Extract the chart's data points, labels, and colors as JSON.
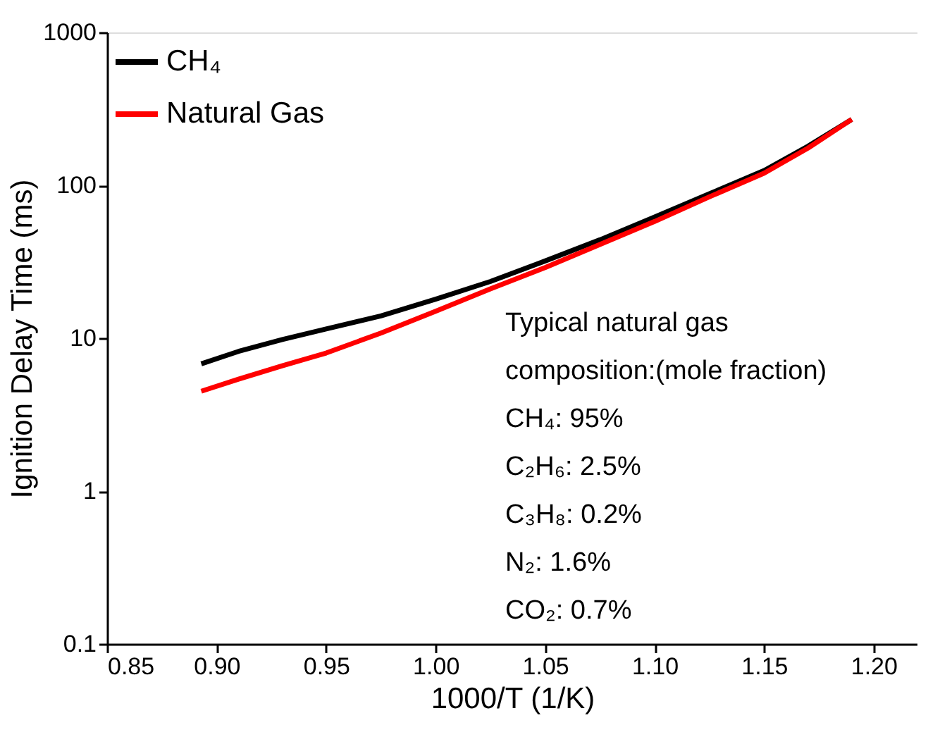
{
  "chart_data": {
    "type": "line",
    "xlabel": "1000/T (1/K)",
    "ylabel": "Ignition Delay Time (ms)",
    "xlim": [
      0.85,
      1.22
    ],
    "xticks": [
      {
        "value": 0.85,
        "label": "0.85"
      },
      {
        "value": 0.9,
        "label": "0.90"
      },
      {
        "value": 0.95,
        "label": "0.95"
      },
      {
        "value": 1.0,
        "label": "1.00"
      },
      {
        "value": 1.05,
        "label": "1.05"
      },
      {
        "value": 1.1,
        "label": "1.10"
      },
      {
        "value": 1.15,
        "label": "1.15"
      },
      {
        "value": 1.2,
        "label": "1.20"
      }
    ],
    "ylim": [
      0.1,
      1000
    ],
    "yticks": [
      0.1,
      1,
      10,
      100,
      1000
    ],
    "log": "y",
    "grid": false,
    "legend": "top left",
    "line_style": "solid",
    "marker": "none",
    "series": [
      {
        "name": "CH₄",
        "color": "#000000",
        "x": [
          0.893,
          0.91,
          0.93,
          0.95,
          0.975,
          1.0,
          1.025,
          1.05,
          1.075,
          1.1,
          1.125,
          1.15,
          1.17,
          1.19
        ],
        "values": [
          6.8,
          8.2,
          9.8,
          11.5,
          14,
          18,
          23.5,
          32,
          44,
          62,
          88,
          125,
          180,
          270
        ]
      },
      {
        "name": "Natural Gas",
        "color": "#ff0000",
        "x": [
          0.893,
          0.91,
          0.93,
          0.95,
          0.975,
          1.0,
          1.025,
          1.05,
          1.075,
          1.1,
          1.125,
          1.15,
          1.17,
          1.19
        ],
        "values": [
          4.5,
          5.4,
          6.6,
          8,
          10.8,
          15,
          21,
          29,
          41,
          58,
          84,
          120,
          175,
          270
        ]
      }
    ],
    "annotations": [
      "Typical natural gas composition:(mole fraction)",
      "CH₄: 95%",
      "C₂H₆: 2.5%",
      "C₃H₈: 0.2%",
      "N₂: 1.6%",
      "CO₂: 0.7%"
    ]
  }
}
